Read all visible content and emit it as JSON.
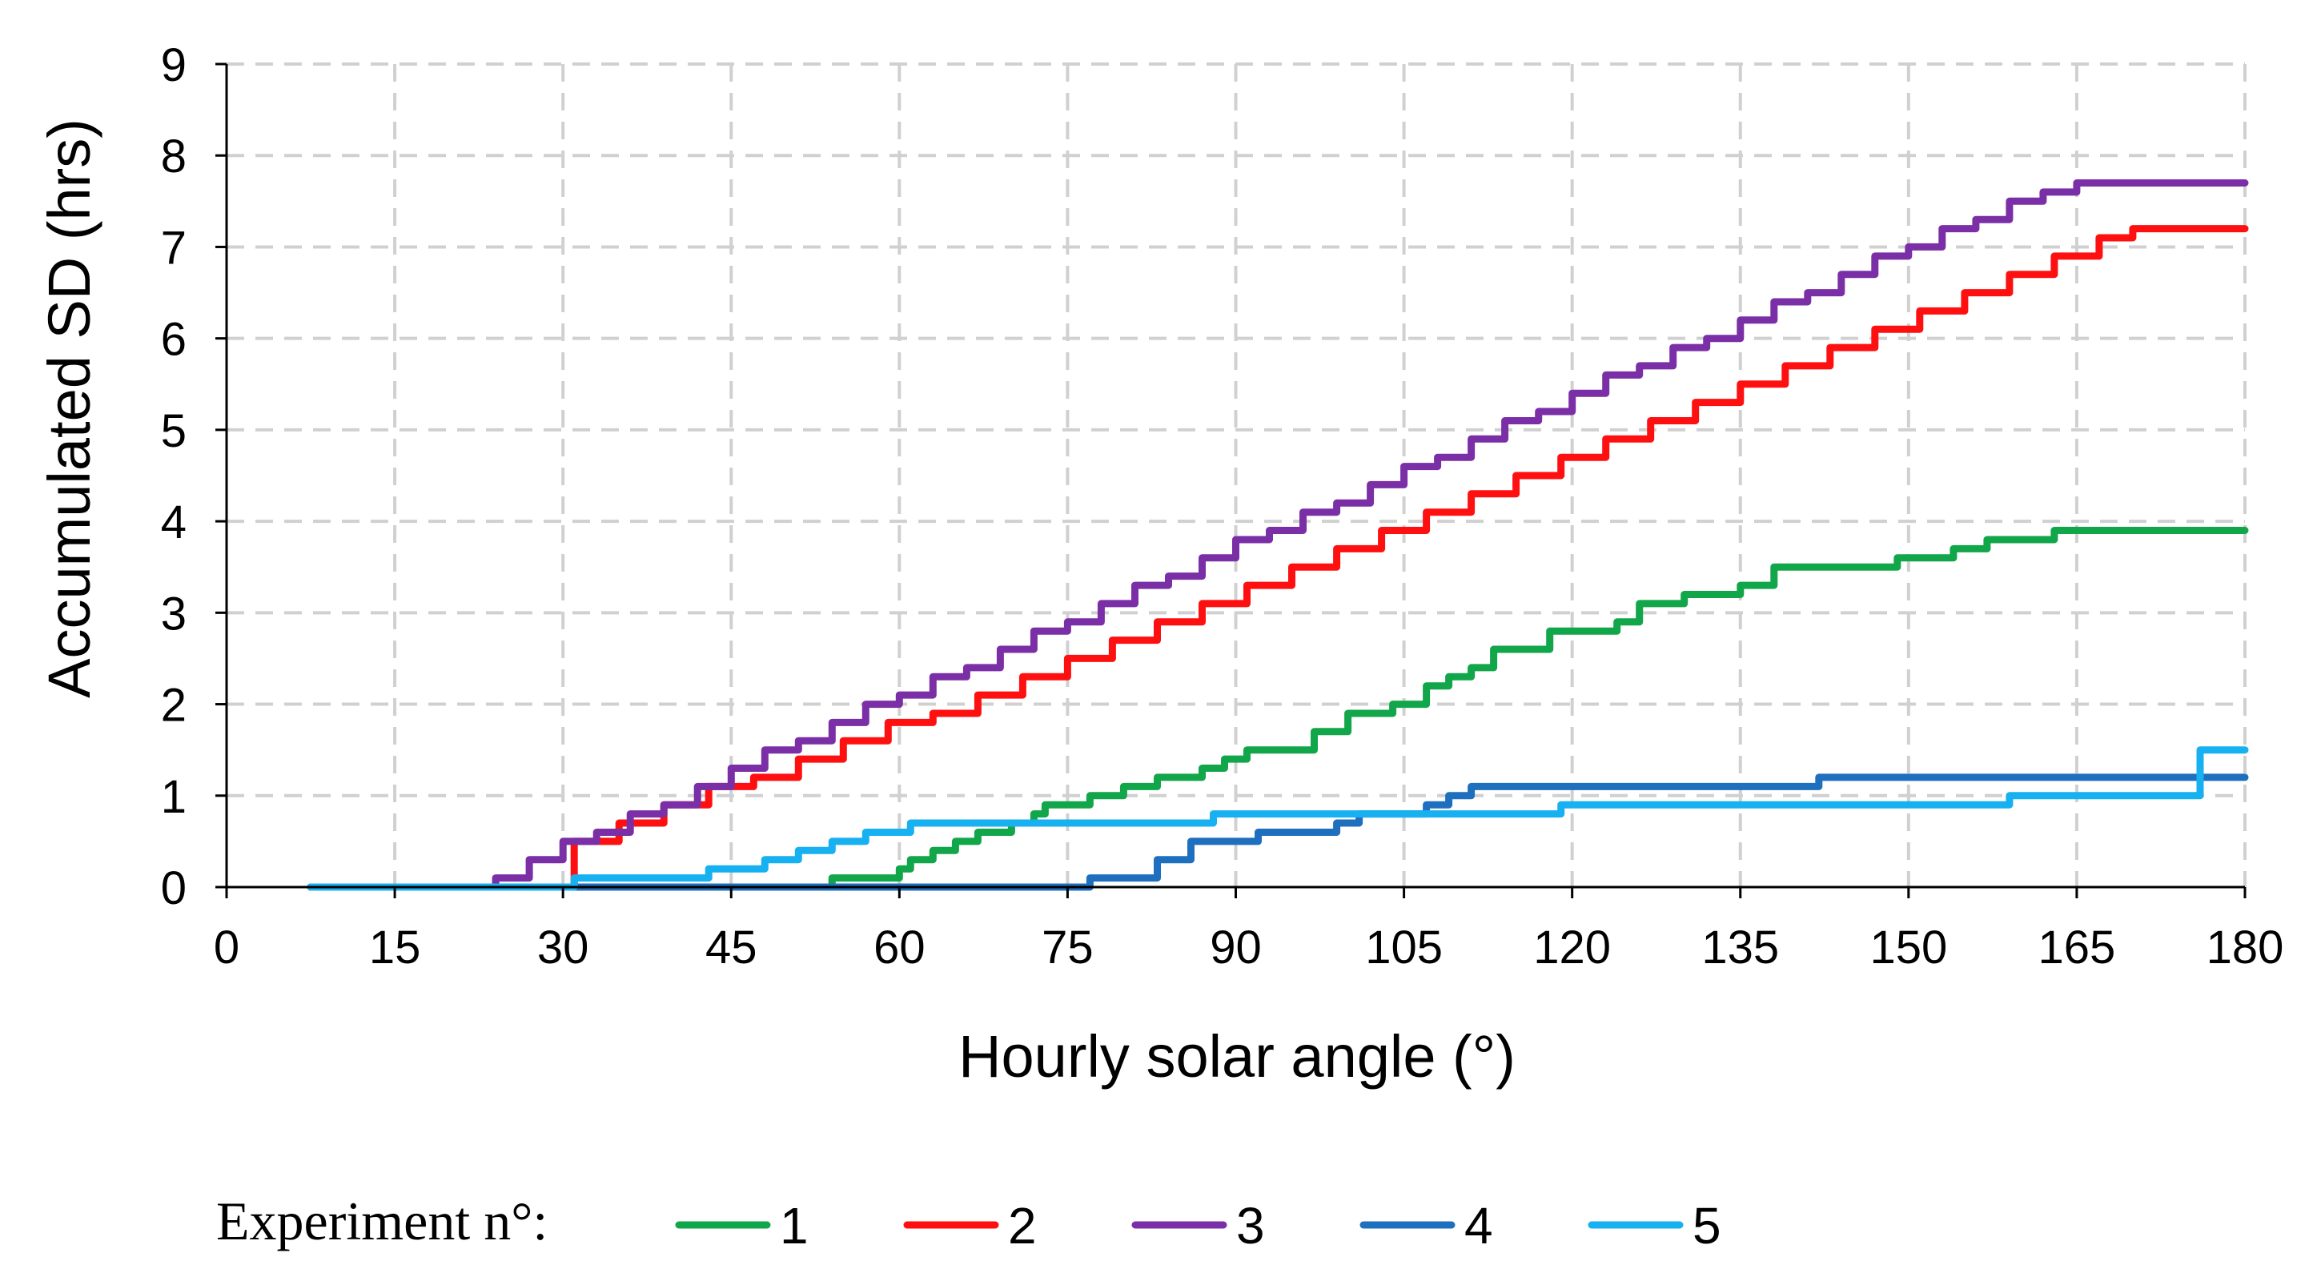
{
  "chart_data": {
    "type": "line",
    "step": true,
    "title": "",
    "xlabel": "Hourly solar angle (°)",
    "ylabel": "Accumulated SD (hrs)",
    "xlim": [
      0,
      180
    ],
    "ylim": [
      0,
      9
    ],
    "xticks": [
      0,
      15,
      30,
      45,
      60,
      75,
      90,
      105,
      120,
      135,
      150,
      165,
      180
    ],
    "yticks": [
      0,
      1,
      2,
      3,
      4,
      5,
      6,
      7,
      8,
      9
    ],
    "grid": true,
    "legend": {
      "title": "Experiment n°:",
      "placement": "bottom"
    },
    "series": [
      {
        "name": "1",
        "color": "#12a64a",
        "x": [
          7.5,
          54,
          60,
          61,
          63,
          65,
          67,
          70,
          72,
          73,
          77,
          80,
          83,
          87,
          89,
          91,
          97,
          100,
          104,
          107,
          109,
          111,
          113,
          118,
          124,
          126,
          130,
          135,
          138,
          149,
          154,
          157,
          163,
          180
        ],
        "y": [
          0,
          0.1,
          0.2,
          0.3,
          0.4,
          0.5,
          0.6,
          0.7,
          0.8,
          0.9,
          1.0,
          1.1,
          1.2,
          1.3,
          1.4,
          1.5,
          1.7,
          1.9,
          2.0,
          2.2,
          2.3,
          2.4,
          2.6,
          2.8,
          2.9,
          3.1,
          3.2,
          3.3,
          3.5,
          3.6,
          3.7,
          3.8,
          3.9,
          3.9
        ]
      },
      {
        "name": "2",
        "color": "#ff1010",
        "x": [
          7.5,
          31,
          35,
          39,
          43,
          47,
          51,
          55,
          59,
          63,
          67,
          71,
          75,
          79,
          83,
          87,
          91,
          95,
          99,
          103,
          107,
          111,
          115,
          119,
          123,
          127,
          131,
          135,
          139,
          143,
          147,
          151,
          155,
          159,
          163,
          167,
          170,
          180
        ],
        "y": [
          0,
          0.5,
          0.7,
          0.9,
          1.1,
          1.2,
          1.4,
          1.6,
          1.8,
          1.9,
          2.1,
          2.3,
          2.5,
          2.7,
          2.9,
          3.1,
          3.3,
          3.5,
          3.7,
          3.9,
          4.1,
          4.3,
          4.5,
          4.7,
          4.9,
          5.1,
          5.3,
          5.5,
          5.7,
          5.9,
          6.1,
          6.3,
          6.5,
          6.7,
          6.9,
          7.1,
          7.2,
          7.2
        ]
      },
      {
        "name": "3",
        "color": "#7b2fa6",
        "x": [
          7.5,
          24,
          27,
          30,
          33,
          36,
          39,
          42,
          45,
          48,
          51,
          54,
          57,
          60,
          63,
          66,
          69,
          72,
          75,
          78,
          81,
          84,
          87,
          90,
          93,
          96,
          99,
          102,
          105,
          108,
          111,
          114,
          117,
          120,
          123,
          126,
          129,
          132,
          135,
          138,
          141,
          144,
          147,
          150,
          153,
          156,
          159,
          162,
          165,
          168,
          180
        ],
        "y": [
          0,
          0.1,
          0.3,
          0.5,
          0.6,
          0.8,
          0.9,
          1.1,
          1.3,
          1.5,
          1.6,
          1.8,
          2.0,
          2.1,
          2.3,
          2.4,
          2.6,
          2.8,
          2.9,
          3.1,
          3.3,
          3.4,
          3.6,
          3.8,
          3.9,
          4.1,
          4.2,
          4.4,
          4.6,
          4.7,
          4.9,
          5.1,
          5.2,
          5.4,
          5.6,
          5.7,
          5.9,
          6.0,
          6.2,
          6.4,
          6.5,
          6.7,
          6.9,
          7.0,
          7.2,
          7.3,
          7.5,
          7.6,
          7.7,
          7.7,
          7.7
        ]
      },
      {
        "name": "4",
        "color": "#1f6fbf",
        "x": [
          7.5,
          77,
          83,
          86,
          92,
          99,
          101,
          107,
          109,
          111,
          142,
          180
        ],
        "y": [
          0,
          0.1,
          0.3,
          0.5,
          0.6,
          0.7,
          0.8,
          0.9,
          1.0,
          1.1,
          1.2,
          1.2
        ]
      },
      {
        "name": "5",
        "color": "#17b0f0",
        "x": [
          7.5,
          31,
          43,
          48,
          51,
          54,
          57,
          61,
          66,
          88,
          119,
          159,
          176,
          180
        ],
        "y": [
          0,
          0.1,
          0.2,
          0.3,
          0.4,
          0.5,
          0.6,
          0.7,
          0.7,
          0.8,
          0.9,
          1.0,
          1.5,
          1.5
        ]
      }
    ]
  }
}
